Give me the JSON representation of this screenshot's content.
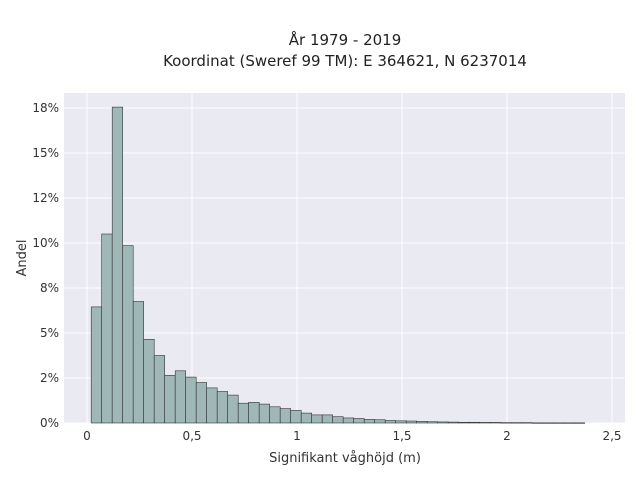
{
  "chart_data": {
    "type": "bar",
    "title_lines": [
      "År 1979 - 2019",
      "Koordinat (Sweref 99 TM): E 364621, N 6237014"
    ],
    "xlabel": "Signifikant våghöjd (m)",
    "ylabel": "Andel",
    "xlim": [
      -0.08,
      2.5
    ],
    "ylim": [
      0,
      0.18
    ],
    "x_ticks": [
      0,
      0.5,
      1,
      1.5,
      2,
      2.5
    ],
    "x_tick_labels": [
      "0",
      "0,5",
      "1",
      "1,5",
      "2",
      "2,5"
    ],
    "y_ticks": [
      0,
      0.025,
      0.05,
      0.075,
      0.1,
      0.125,
      0.15,
      0.175
    ],
    "y_tick_labels": [
      "0%",
      "2%",
      "5%",
      "8%",
      "10%",
      "12%",
      "15%",
      "18%"
    ],
    "bin_width": 0.05,
    "bin_starts": [
      0.02,
      0.07,
      0.12,
      0.17,
      0.22,
      0.27,
      0.32,
      0.37,
      0.42,
      0.47,
      0.52,
      0.57,
      0.62,
      0.67,
      0.72,
      0.77,
      0.82,
      0.87,
      0.92,
      0.97,
      1.02,
      1.07,
      1.12,
      1.17,
      1.22,
      1.27,
      1.32,
      1.37,
      1.42,
      1.47,
      1.52,
      1.57,
      1.62,
      1.67,
      1.72,
      1.77,
      1.82,
      1.87,
      1.92,
      1.97,
      2.02,
      2.07,
      2.12,
      2.17,
      2.22,
      2.27,
      2.32
    ],
    "values": [
      0.0645,
      0.105,
      0.1755,
      0.0985,
      0.0675,
      0.0465,
      0.0375,
      0.0265,
      0.029,
      0.0255,
      0.0225,
      0.0195,
      0.0175,
      0.0155,
      0.011,
      0.0115,
      0.0105,
      0.009,
      0.008,
      0.007,
      0.0055,
      0.0045,
      0.0045,
      0.0035,
      0.0028,
      0.0025,
      0.002,
      0.0018,
      0.0014,
      0.0012,
      0.0011,
      0.0009,
      0.0007,
      0.0006,
      0.0005,
      0.0004,
      0.0004,
      0.0003,
      0.0003,
      0.0002,
      0.0002,
      0.0002,
      0.0001,
      0.0001,
      0.0001,
      0.0001,
      0.0001
    ],
    "colors": {
      "plot_bg": "#eaeaf2",
      "bar_fill": "#9fb7b7",
      "bar_edge": "#333333",
      "grid": "#ffffff"
    },
    "grid": true
  }
}
